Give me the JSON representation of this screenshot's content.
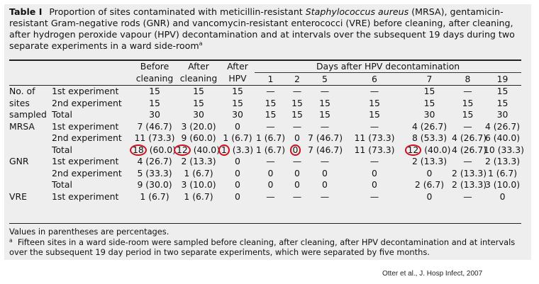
{
  "caption": {
    "label": "Table I",
    "text_before": "Proportion of sites contaminated with meticillin-resistant ",
    "text_italic": "Staphylococcus aureus",
    "text_after": " (MRSA), gentamicin-resistant Gram-negative rods (GNR) and vancomycin-resistant enterococci (VRE) before cleaning, after cleaning, after hydrogen peroxide vapour (HPV) decontamination and at intervals over the subsequent 19 days during two separate experiments in a ward side-room",
    "sup": "a"
  },
  "table": {
    "header": {
      "before_cleaning_1": "Before",
      "before_cleaning_2": "cleaning",
      "after_cleaning_1": "After",
      "after_cleaning_2": "cleaning",
      "after_hpv_1": "After",
      "after_hpv_2": "HPV",
      "days_header": "Days after HPV decontamination",
      "days": [
        "1",
        "2",
        "5",
        "6",
        "7",
        "8",
        "19"
      ]
    },
    "groups": [
      {
        "group_lines": [
          "No. of",
          "sites",
          "sampled"
        ],
        "rows": [
          {
            "label": "1st experiment",
            "cells": [
              "15",
              "15",
              "15",
              "—",
              "—",
              "—",
              "—",
              "15",
              "—",
              "15"
            ]
          },
          {
            "label": "2nd experiment",
            "cells": [
              "15",
              "15",
              "15",
              "15",
              "15",
              "15",
              "15",
              "15",
              "15",
              "15"
            ]
          },
          {
            "label": "Total",
            "cells": [
              "30",
              "30",
              "30",
              "15",
              "15",
              "15",
              "15",
              "30",
              "15",
              "30"
            ]
          }
        ]
      },
      {
        "group_lines": [
          "MRSA",
          "",
          ""
        ],
        "rows": [
          {
            "label": "1st experiment",
            "cells": [
              "7 (46.7)",
              "3 (20.0)",
              "0",
              "—",
              "—",
              "—",
              "—",
              "4 (26.7)",
              "—",
              "4 (26.7)"
            ]
          },
          {
            "label": "2nd experiment",
            "cells": [
              "11 (73.3)",
              "9 (60.0)",
              "1 (6.7)",
              "1 (6.7)",
              "0",
              "7 (46.7)",
              "11 (73.3)",
              "8 (53.3)",
              "4 (26.7)",
              "6 (40.0)"
            ]
          },
          {
            "label": "Total",
            "cells": [
              "18 (60.0)",
              "12 (40.0)",
              "1 (3.3)",
              "1 (6.7)",
              "0",
              "7 (46.7)",
              "11 (73.3)",
              "12 (40.0)",
              "4 (26.7)",
              "10 (33.3)"
            ]
          }
        ]
      },
      {
        "group_lines": [
          "GNR",
          "",
          ""
        ],
        "rows": [
          {
            "label": "1st experiment",
            "cells": [
              "4 (26.7)",
              "2 (13.3)",
              "0",
              "—",
              "—",
              "—",
              "—",
              "2 (13.3)",
              "—",
              "2 (13.3)"
            ]
          },
          {
            "label": "2nd experiment",
            "cells": [
              "5 (33.3)",
              "1 (6.7)",
              "0",
              "0",
              "0",
              "0",
              "0",
              "0",
              "2 (13.3)",
              "1 (6.7)"
            ]
          },
          {
            "label": "Total",
            "cells": [
              "9 (30.0)",
              "3 (10.0)",
              "0",
              "0",
              "0",
              "0",
              "0",
              "2 (6.7)",
              "2 (13.3)",
              "3 (10.0)"
            ]
          }
        ]
      },
      {
        "group_lines": [
          "VRE"
        ],
        "rows": [
          {
            "label": "1st experiment",
            "cells": [
              "1 (6.7)",
              "1 (6.7)",
              "0",
              "—",
              "—",
              "—",
              "—",
              "0",
              "—",
              "0"
            ]
          }
        ]
      }
    ]
  },
  "footnotes": {
    "note": "Values in parentheses are percentages.",
    "sup": "a",
    "footnote_a": "Fifteen sites in a ward side-room were sampled before cleaning, after cleaning, after HPV decontamination and at intervals over the subsequent 19 day period in two separate experiments, which were separated by five months."
  },
  "source": "Otter et al., J. Hosp Infect, 2007",
  "highlight_color": "#cc1020"
}
